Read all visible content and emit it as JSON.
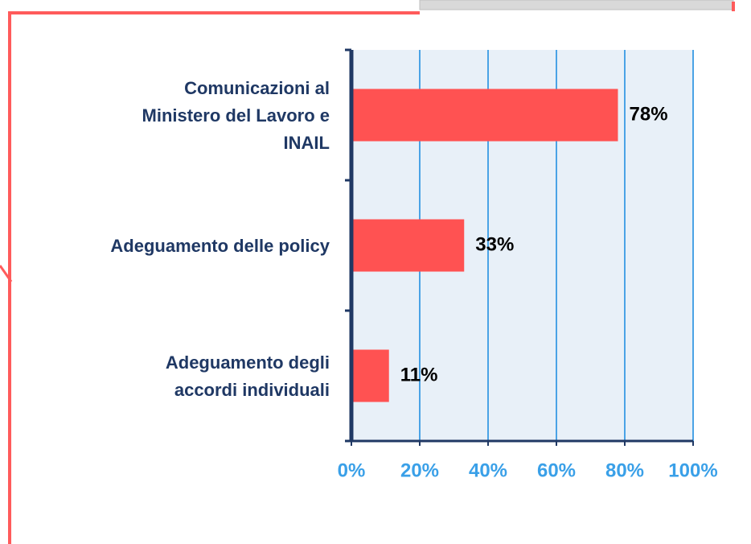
{
  "chart_data": {
    "type": "barh",
    "categories": [
      "Comunicazioni al\nMinistero del Lavoro e\nINAIL",
      "Adeguamento delle policy",
      "Adeguamento degli\naccordi individuali"
    ],
    "values": [
      78,
      33,
      11
    ],
    "value_labels": [
      "78%",
      "33%",
      "11%"
    ],
    "color": "#ff5252",
    "xlim": [
      0,
      100
    ],
    "xticks": [
      {
        "value": 0,
        "label": "0%"
      },
      {
        "value": 20,
        "label": "20%"
      },
      {
        "value": 40,
        "label": "40%"
      },
      {
        "value": 60,
        "label": "60%"
      },
      {
        "value": 80,
        "label": "80%"
      },
      {
        "value": 100,
        "label": "100%"
      }
    ],
    "grid": true
  }
}
